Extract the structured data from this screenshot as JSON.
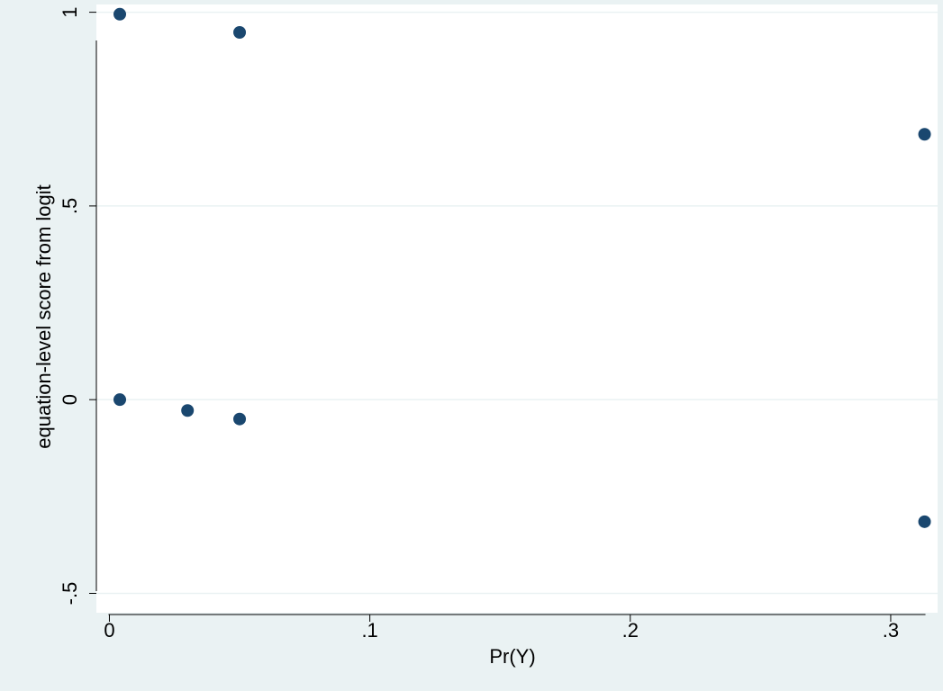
{
  "chart_data": {
    "type": "scatter",
    "title": "",
    "xlabel": "Pr(Y)",
    "ylabel": "equation-level score from logit",
    "xlim": [
      -0.005,
      0.318
    ],
    "ylim": [
      -0.55,
      1.02
    ],
    "x_ticks": [
      0,
      0.1,
      0.2,
      0.3
    ],
    "x_tick_labels": [
      "0",
      ".1",
      ".2",
      ".3"
    ],
    "y_ticks": [
      -0.5,
      0,
      0.5,
      1
    ],
    "y_tick_labels": [
      "-.5",
      "0",
      ".5",
      "1"
    ],
    "grid": "horizontal",
    "marker_color": "#1a476f",
    "background_color": "#eaf2f3",
    "plot_background_color": "#ffffff",
    "gridline_color": "#eaf2f3",
    "x": [
      0.004,
      0.004,
      0.03,
      0.05,
      0.05,
      0.313,
      0.313
    ],
    "y": [
      0.995,
      0.0,
      -0.028,
      0.948,
      -0.05,
      0.685,
      -0.315
    ]
  }
}
